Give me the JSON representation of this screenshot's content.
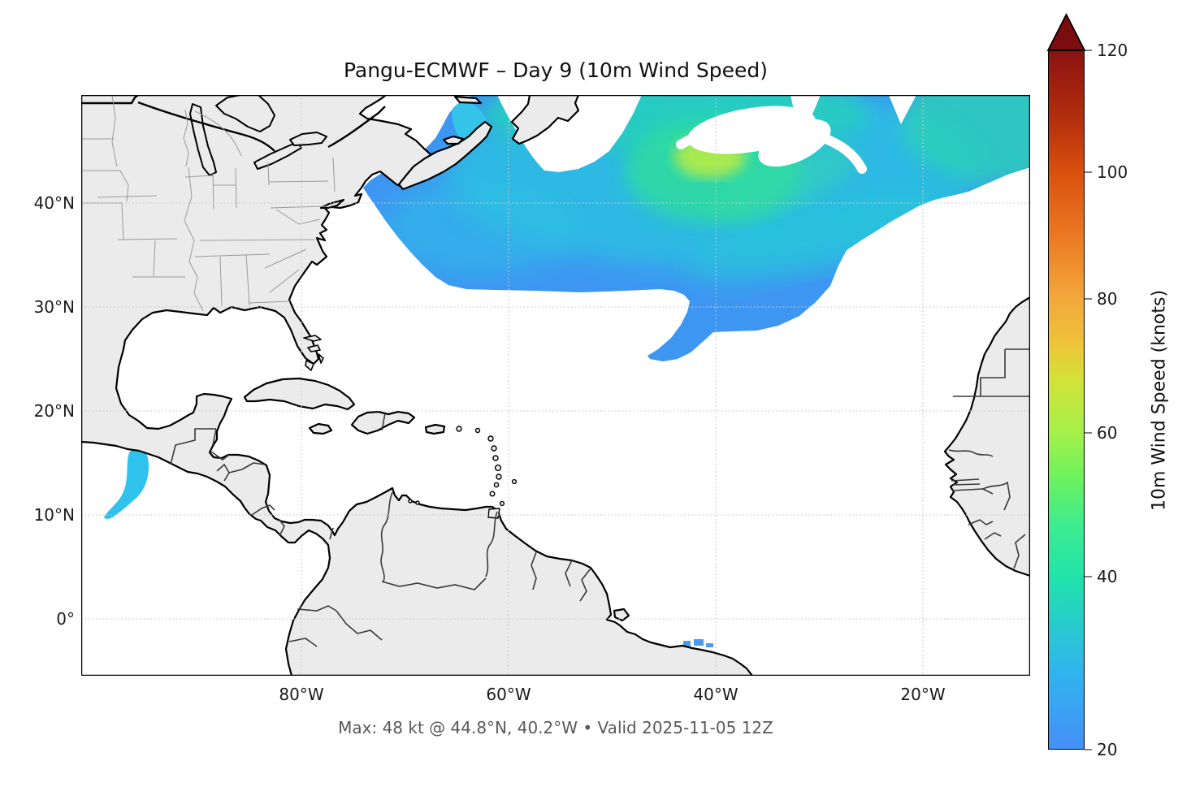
{
  "figure": {
    "title": "Pangu-ECMWF – Day 9 (10m Wind Speed)",
    "caption": "Max: 48 kt @ 44.8°N, 40.2°W • Valid 2025-11-05 12Z"
  },
  "axes": {
    "y_ticks": [
      "40°N",
      "30°N",
      "20°N",
      "10°N",
      "0°"
    ],
    "x_ticks": [
      "80°W",
      "60°W",
      "40°W",
      "20°W"
    ]
  },
  "colorbar": {
    "label": "10m Wind Speed (knots)",
    "ticks": [
      "120",
      "100",
      "80",
      "60",
      "40",
      "20"
    ]
  },
  "chart_data": {
    "type": "heatmap",
    "title": "Pangu-ECMWF – Day 9 (10m Wind Speed)",
    "model": "Pangu-ECMWF",
    "forecast_day": 9,
    "variable": "10m Wind Speed",
    "units": "knots",
    "valid_time": "2025-11-05 12Z",
    "max_value_kt": 48,
    "max_location": {
      "lat_deg_n": 44.8,
      "lon_deg_w": 40.2
    },
    "map_extent": {
      "lon_min": -101,
      "lon_max": -10,
      "lat_min": -5.5,
      "lat_max": 50.5
    },
    "gridlines": {
      "lats_deg": [
        0,
        10,
        20,
        30,
        40
      ],
      "lons_deg": [
        -80,
        -60,
        -40,
        -20
      ],
      "style": "dotted"
    },
    "colorbar": {
      "label": "10m Wind Speed (knots)",
      "min": 20,
      "max": 120,
      "extend": "max",
      "tick_values": [
        20,
        40,
        60,
        80,
        100,
        120
      ],
      "tick_fractions_from_bottom": [
        0,
        0.247,
        0.453,
        0.645,
        0.826,
        1.0
      ],
      "stop_colors": {
        "20": "#4590f8",
        "30": "#30b4ee",
        "40": "#21e3aa",
        "50": "#5eef68",
        "60": "#a5f04a",
        "70": "#e4c93a",
        "80": "#f3a83c",
        "90": "#ec7b24",
        "100": "#d9500f",
        "110": "#b02c0e",
        "120": "#8a1210",
        "over_arrow": "#7c0d0e"
      }
    },
    "wind_regions": [
      {
        "name": "north-atlantic-storm-swath",
        "desc": "Large contiguous area of 20–48 kt winds spanning the North Atlantic from the US/Canadian east coast (~70°W) to ~10°W, roughly 31–50°N, with embedded white calm hook/eye feature near 46°N 38°W",
        "peak_kt": 48,
        "peak_lat": 44.8,
        "peak_lon": -40.2
      },
      {
        "name": "southward-tail",
        "desc": "Narrow tongue of ~20–25 kt winds extending SW to about 25°N, 46°W"
      },
      {
        "name": "gulf-of-st-lawrence-patch",
        "desc": "Small 20–35 kt patch in the Gulf of St. Lawrence near 47°N 63°W"
      },
      {
        "name": "tehuantepec-pacific-patch",
        "desc": "Small 20–35 kt gap-wind patch in the Pacific off Guatemala/Mexico near 14°N 97°W"
      },
      {
        "name": "amazon-coast-specks",
        "desc": "Tiny ~20 kt specks on the Brazilian north coast near 2°S 44°W"
      }
    ],
    "style_colors": {
      "ocean": "#ffffff",
      "land": "#ebebeb",
      "coastline": "#000000",
      "state_borders": "#9b9b9b",
      "country_borders": "#3a3a3a",
      "gridline": "#c9c9c9",
      "wind_base_blue": "#3e96f3",
      "wind_teal": "#27cfbe",
      "wind_green": "#2fdf9a",
      "wind_core_yellow": "#b0ea4c"
    }
  }
}
